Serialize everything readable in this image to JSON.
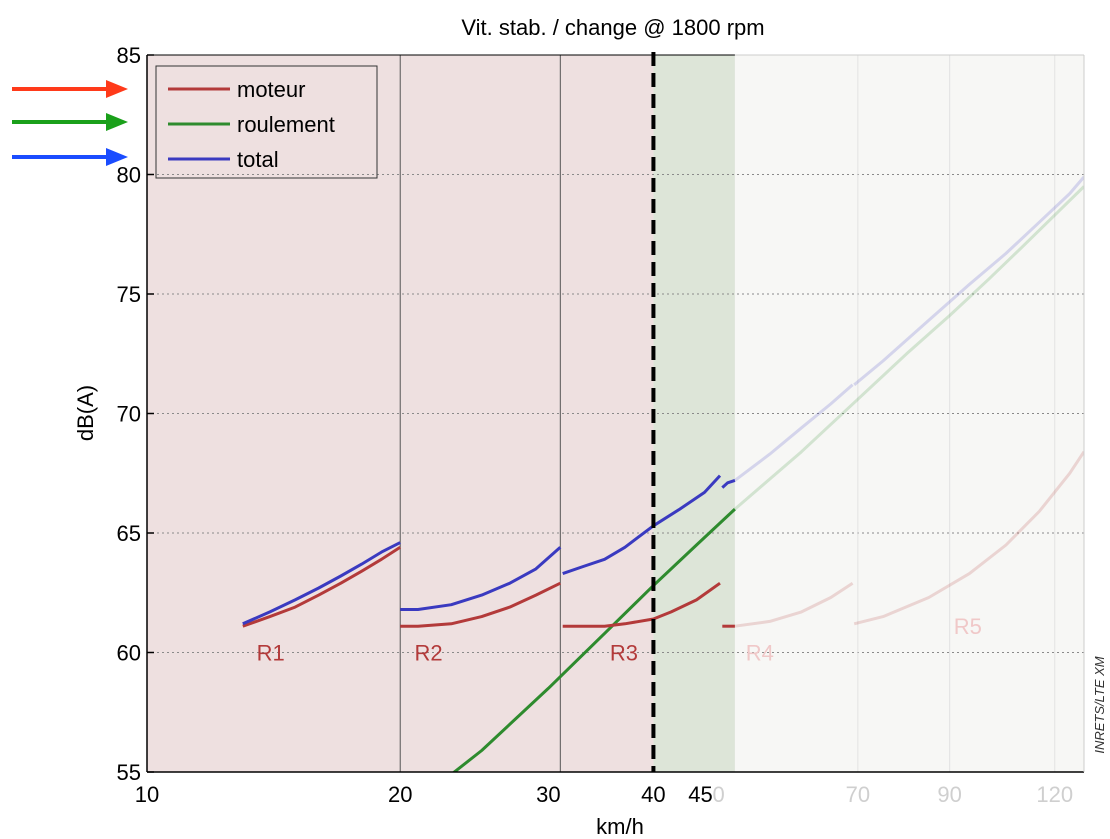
{
  "chart_data": {
    "type": "line",
    "title": "Vit. stab. /  change @ 1800 rpm",
    "xlabel": "km/h",
    "ylabel": "dB(A)",
    "x_scale": "log",
    "xlim": [
      10,
      130
    ],
    "ylim": [
      55,
      85
    ],
    "x_ticks": [
      "10",
      "20",
      "30",
      "40",
      "4",
      "5",
      "0",
      "70",
      "90",
      "120"
    ],
    "y_ticks": [
      "55",
      "60",
      "65",
      "70",
      "75",
      "80",
      "85"
    ],
    "legend": {
      "placement": "top-left",
      "entries": [
        "moteur",
        "roulement",
        "total"
      ]
    },
    "colors": {
      "moteur": "#b33a3a",
      "roulement": "#2e8b2e",
      "total": "#3a3ac0",
      "arrow_red": "#ff3a1a",
      "arrow_green": "#1aa01a",
      "arrow_blue": "#1a4cff"
    },
    "region_boundaries_kmh": [
      20,
      31,
      40,
      50
    ],
    "change_speed_kmh": 40,
    "gears": [
      {
        "label": "R1",
        "x": 13.5,
        "y": 60.0,
        "faded": false
      },
      {
        "label": "R2",
        "x": 20.8,
        "y": 60.0,
        "faded": false
      },
      {
        "label": "R3",
        "x": 35.5,
        "y": 60.0,
        "faded": false
      },
      {
        "label": "R4",
        "x": 51.5,
        "y": 60.0,
        "faded": true
      },
      {
        "label": "R5",
        "x": 91,
        "y": 61.1,
        "faded": true
      }
    ],
    "series": [
      {
        "name": "moteur",
        "segments": [
          {
            "x": [
              13,
              14,
              15,
              16,
              17,
              18,
              19,
              20
            ],
            "y": [
              61.1,
              61.5,
              61.9,
              62.4,
              62.9,
              63.4,
              63.9,
              64.4
            ]
          },
          {
            "x": [
              20,
              21,
              23,
              25,
              27,
              29,
              31
            ],
            "y": [
              61.1,
              61.1,
              61.2,
              61.5,
              61.9,
              62.4,
              62.9
            ]
          },
          {
            "x": [
              31.2,
              33,
              35,
              37,
              40,
              42,
              45,
              48
            ],
            "y": [
              61.1,
              61.1,
              61.1,
              61.2,
              61.4,
              61.7,
              62.2,
              62.9
            ]
          },
          {
            "x": [
              48.3,
              50
            ],
            "y": [
              61.1,
              61.1
            ]
          }
        ],
        "faded_segments": [
          {
            "x": [
              50,
              55,
              60,
              65,
              69
            ],
            "y": [
              61.1,
              61.3,
              61.7,
              62.3,
              62.9
            ]
          },
          {
            "x": [
              69.3,
              75,
              85,
              95,
              105,
              115,
              125,
              130
            ],
            "y": [
              61.2,
              61.5,
              62.3,
              63.3,
              64.5,
              65.9,
              67.5,
              68.4
            ]
          }
        ]
      },
      {
        "name": "roulement",
        "segments": [
          {
            "x": [
              23,
              25,
              30,
              35,
              40,
              45,
              50
            ],
            "y": [
              54.9,
              55.9,
              58.5,
              60.8,
              62.8,
              64.5,
              66.0
            ]
          }
        ],
        "faded_segments": [
          {
            "x": [
              50,
              60,
              70,
              80,
              90,
              100,
              110,
              120,
              130
            ],
            "y": [
              66.0,
              68.4,
              70.6,
              72.5,
              74.1,
              75.6,
              77.0,
              78.3,
              79.5
            ]
          }
        ]
      },
      {
        "name": "total",
        "segments": [
          {
            "x": [
              13,
              14,
              15,
              16,
              17,
              18,
              19,
              20
            ],
            "y": [
              61.2,
              61.7,
              62.2,
              62.7,
              63.2,
              63.7,
              64.2,
              64.6
            ]
          },
          {
            "x": [
              20,
              21,
              23,
              25,
              27,
              29,
              31
            ],
            "y": [
              61.8,
              61.8,
              62.0,
              62.4,
              62.9,
              63.5,
              64.4
            ]
          },
          {
            "x": [
              31.2,
              33,
              35,
              37,
              40,
              43,
              46,
              48
            ],
            "y": [
              63.3,
              63.6,
              63.9,
              64.4,
              65.3,
              66.0,
              66.7,
              67.4
            ]
          },
          {
            "x": [
              48.3,
              49,
              50
            ],
            "y": [
              66.9,
              67.1,
              67.2
            ]
          }
        ],
        "faded_segments": [
          {
            "x": [
              50,
              55,
              60,
              65,
              69
            ],
            "y": [
              67.2,
              68.3,
              69.4,
              70.4,
              71.2
            ]
          },
          {
            "x": [
              69.3,
              75,
              85,
              95,
              105,
              115,
              125,
              130
            ],
            "y": [
              71.2,
              72.2,
              73.9,
              75.4,
              76.7,
              78.0,
              79.2,
              79.9
            ]
          }
        ]
      }
    ]
  },
  "credit": "INRETS/LTE XM"
}
